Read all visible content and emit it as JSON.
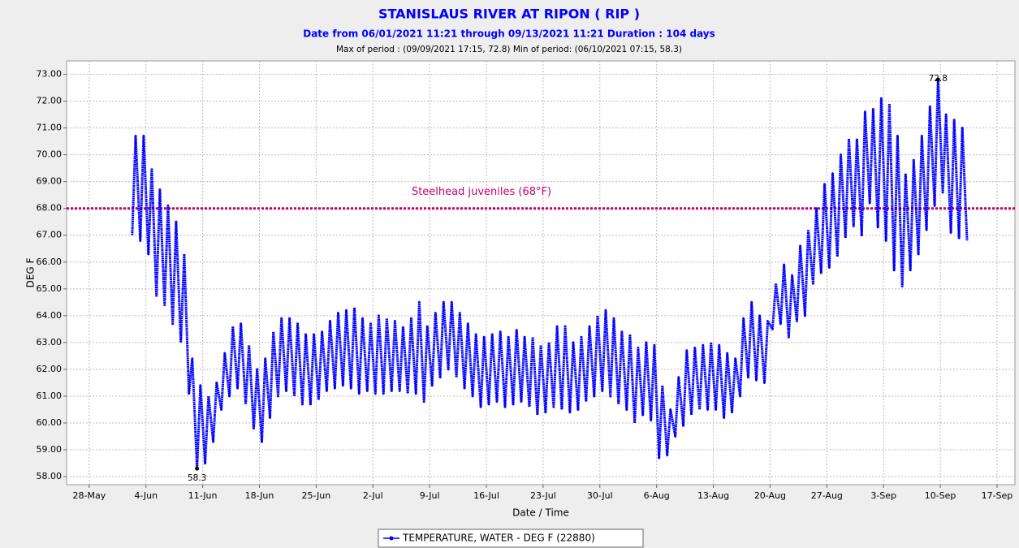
{
  "chart_data": {
    "type": "line",
    "title": "STANISLAUS RIVER AT RIPON ( RIP )",
    "subtitle": "Date from 06/01/2021 11:21 through 09/13/2021 11:21 Duration : 104 days",
    "note": "Max of period : (09/09/2021 17:15, 72.8)  Min of period: (06/10/2021 07:15,  58.3)",
    "ylabel": "DEG F",
    "xlabel": "Date / Time",
    "xlim": [
      "2021-05-25T05:00",
      "2021-09-19T05:00"
    ],
    "xticks": [
      {
        "value": "2021-05-28T00:00",
        "label": "28-May"
      },
      {
        "value": "2021-06-04T00:00",
        "label": "4-Jun"
      },
      {
        "value": "2021-06-11T00:00",
        "label": "11-Jun"
      },
      {
        "value": "2021-06-18T00:00",
        "label": "18-Jun"
      },
      {
        "value": "2021-06-25T00:00",
        "label": "25-Jun"
      },
      {
        "value": "2021-07-02T00:00",
        "label": "2-Jul"
      },
      {
        "value": "2021-07-09T00:00",
        "label": "9-Jul"
      },
      {
        "value": "2021-07-16T00:00",
        "label": "16-Jul"
      },
      {
        "value": "2021-07-23T00:00",
        "label": "23-Jul"
      },
      {
        "value": "2021-07-30T00:00",
        "label": "30-Jul"
      },
      {
        "value": "2021-08-06T00:00",
        "label": "6-Aug"
      },
      {
        "value": "2021-08-13T00:00",
        "label": "13-Aug"
      },
      {
        "value": "2021-08-20T00:00",
        "label": "20-Aug"
      },
      {
        "value": "2021-08-27T00:00",
        "label": "27-Aug"
      },
      {
        "value": "2021-09-03T00:00",
        "label": "3-Sep"
      },
      {
        "value": "2021-09-10T00:00",
        "label": "10-Sep"
      },
      {
        "value": "2021-09-17T00:00",
        "label": "17-Sep"
      }
    ],
    "ylim": [
      57.7,
      73.5
    ],
    "yticks": [
      {
        "value": 58,
        "label": "58.00"
      },
      {
        "value": 59,
        "label": "59.00"
      },
      {
        "value": 60,
        "label": "60.00"
      },
      {
        "value": 61,
        "label": "61.00"
      },
      {
        "value": 62,
        "label": "62.00"
      },
      {
        "value": 63,
        "label": "63.00"
      },
      {
        "value": 64,
        "label": "64.00"
      },
      {
        "value": 65,
        "label": "65.00"
      },
      {
        "value": 66,
        "label": "66.00"
      },
      {
        "value": 67,
        "label": "67.00"
      },
      {
        "value": 68,
        "label": "68.00"
      },
      {
        "value": 69,
        "label": "69.00"
      },
      {
        "value": 70,
        "label": "70.00"
      },
      {
        "value": 71,
        "label": "71.00"
      },
      {
        "value": 72,
        "label": "72.00"
      },
      {
        "value": 73,
        "label": "73.00"
      }
    ],
    "grid": true,
    "reference_line": {
      "value": 68,
      "label": "Steelhead juveniles (68°F)",
      "color": "#cc0066"
    },
    "annotations": [
      {
        "x": "2021-09-09T17:15",
        "y": 72.8,
        "label": "72.8"
      },
      {
        "x": "2021-06-10T07:15",
        "y": 58.3,
        "label": "58.3"
      }
    ],
    "x": [
      "2021-06-02T07:15",
      "2021-06-02T17:15",
      "2021-06-03T07:15",
      "2021-06-03T17:15",
      "2021-06-04T07:15",
      "2021-06-04T17:15",
      "2021-06-05T07:15",
      "2021-06-05T17:15",
      "2021-06-06T07:15",
      "2021-06-06T17:15",
      "2021-06-07T07:15",
      "2021-06-07T17:15",
      "2021-06-08T07:15",
      "2021-06-08T17:15",
      "2021-06-09T07:15",
      "2021-06-09T17:15",
      "2021-06-10T07:15",
      "2021-06-10T17:15",
      "2021-06-11T07:15",
      "2021-06-11T17:15",
      "2021-06-12T07:15",
      "2021-06-12T17:15",
      "2021-06-13T07:15",
      "2021-06-13T17:15",
      "2021-06-14T07:15",
      "2021-06-14T17:15",
      "2021-06-15T07:15",
      "2021-06-15T17:15",
      "2021-06-16T07:15",
      "2021-06-16T17:15",
      "2021-06-17T07:15",
      "2021-06-17T17:15",
      "2021-06-18T07:15",
      "2021-06-18T17:15",
      "2021-06-19T07:15",
      "2021-06-19T17:15",
      "2021-06-20T07:15",
      "2021-06-20T17:15",
      "2021-06-21T07:15",
      "2021-06-21T17:15",
      "2021-06-22T07:15",
      "2021-06-22T17:15",
      "2021-06-23T07:15",
      "2021-06-23T17:15",
      "2021-06-24T07:15",
      "2021-06-24T17:15",
      "2021-06-25T07:15",
      "2021-06-25T17:15",
      "2021-06-26T07:15",
      "2021-06-26T17:15",
      "2021-06-27T07:15",
      "2021-06-27T17:15",
      "2021-06-28T07:15",
      "2021-06-28T17:15",
      "2021-06-29T07:15",
      "2021-06-29T17:15",
      "2021-06-30T07:15",
      "2021-06-30T17:15",
      "2021-07-01T07:15",
      "2021-07-01T17:15",
      "2021-07-02T07:15",
      "2021-07-02T17:15",
      "2021-07-03T07:15",
      "2021-07-03T17:15",
      "2021-07-04T07:15",
      "2021-07-04T17:15",
      "2021-07-05T07:15",
      "2021-07-05T17:15",
      "2021-07-06T07:15",
      "2021-07-06T17:15",
      "2021-07-07T07:15",
      "2021-07-07T17:15",
      "2021-07-08T07:15",
      "2021-07-08T17:15",
      "2021-07-09T07:15",
      "2021-07-09T17:15",
      "2021-07-10T07:15",
      "2021-07-10T17:15",
      "2021-07-11T07:15",
      "2021-07-11T17:15",
      "2021-07-12T07:15",
      "2021-07-12T17:15",
      "2021-07-13T07:15",
      "2021-07-13T17:15",
      "2021-07-14T07:15",
      "2021-07-14T17:15",
      "2021-07-15T07:15",
      "2021-07-15T17:15",
      "2021-07-16T07:15",
      "2021-07-16T17:15",
      "2021-07-17T07:15",
      "2021-07-17T17:15",
      "2021-07-18T07:15",
      "2021-07-18T17:15",
      "2021-07-19T07:15",
      "2021-07-19T17:15",
      "2021-07-20T07:15",
      "2021-07-20T17:15",
      "2021-07-21T07:15",
      "2021-07-21T17:15",
      "2021-07-22T07:15",
      "2021-07-22T17:15",
      "2021-07-23T07:15",
      "2021-07-23T17:15",
      "2021-07-24T07:15",
      "2021-07-24T17:15",
      "2021-07-25T07:15",
      "2021-07-25T17:15",
      "2021-07-26T07:15",
      "2021-07-26T17:15",
      "2021-07-27T07:15",
      "2021-07-27T17:15",
      "2021-07-28T07:15",
      "2021-07-28T17:15",
      "2021-07-29T07:15",
      "2021-07-29T17:15",
      "2021-07-30T07:15",
      "2021-07-30T17:15",
      "2021-07-31T07:15",
      "2021-07-31T17:15",
      "2021-08-01T07:15",
      "2021-08-01T17:15",
      "2021-08-02T07:15",
      "2021-08-02T17:15",
      "2021-08-03T07:15",
      "2021-08-03T17:15",
      "2021-08-04T07:15",
      "2021-08-04T17:15",
      "2021-08-05T07:15",
      "2021-08-05T17:15",
      "2021-08-06T07:15",
      "2021-08-06T17:15",
      "2021-08-07T07:15",
      "2021-08-07T17:15",
      "2021-08-08T07:15",
      "2021-08-08T17:15",
      "2021-08-09T07:15",
      "2021-08-09T17:15",
      "2021-08-10T07:15",
      "2021-08-10T17:15",
      "2021-08-11T07:15",
      "2021-08-11T17:15",
      "2021-08-12T07:15",
      "2021-08-12T17:15",
      "2021-08-13T07:15",
      "2021-08-13T17:15",
      "2021-08-14T07:15",
      "2021-08-14T17:15",
      "2021-08-15T07:15",
      "2021-08-15T17:15",
      "2021-08-16T07:15",
      "2021-08-16T17:15",
      "2021-08-17T07:15",
      "2021-08-17T17:15",
      "2021-08-18T07:15",
      "2021-08-18T17:15",
      "2021-08-19T07:15",
      "2021-08-19T17:15",
      "2021-08-20T07:15",
      "2021-08-20T17:15",
      "2021-08-21T07:15",
      "2021-08-21T17:15",
      "2021-08-22T07:15",
      "2021-08-22T17:15",
      "2021-08-23T07:15",
      "2021-08-23T17:15",
      "2021-08-24T07:15",
      "2021-08-24T17:15",
      "2021-08-25T07:15",
      "2021-08-25T17:15",
      "2021-08-26T07:15",
      "2021-08-26T17:15",
      "2021-08-27T07:15",
      "2021-08-27T17:15",
      "2021-08-28T07:15",
      "2021-08-28T17:15",
      "2021-08-29T07:15",
      "2021-08-29T17:15",
      "2021-08-30T07:15",
      "2021-08-30T17:15",
      "2021-08-31T07:15",
      "2021-08-31T17:15",
      "2021-09-01T07:15",
      "2021-09-01T17:15",
      "2021-09-02T07:15",
      "2021-09-02T17:15",
      "2021-09-03T07:15",
      "2021-09-03T17:15",
      "2021-09-04T07:15",
      "2021-09-04T17:15",
      "2021-09-05T07:15",
      "2021-09-05T17:15",
      "2021-09-06T07:15",
      "2021-09-06T17:15",
      "2021-09-07T07:15",
      "2021-09-07T17:15",
      "2021-09-08T07:15",
      "2021-09-08T17:15",
      "2021-09-09T07:15",
      "2021-09-09T17:15",
      "2021-09-10T07:15",
      "2021-09-10T17:15",
      "2021-09-11T07:15",
      "2021-09-11T17:15",
      "2021-09-12T07:15",
      "2021-09-12T17:15",
      "2021-09-13T07:15"
    ],
    "series": [
      {
        "name": "TEMPERATURE, WATER - DEG F (22880)",
        "color": "#0000ff",
        "values": [
          67.0,
          70.7,
          66.8,
          70.7,
          66.3,
          69.5,
          64.7,
          68.7,
          64.4,
          68.1,
          63.7,
          67.5,
          63.0,
          66.3,
          61.1,
          62.4,
          58.3,
          61.4,
          58.5,
          61.0,
          59.3,
          61.5,
          60.5,
          62.6,
          61.0,
          63.6,
          61.3,
          63.7,
          60.7,
          62.9,
          59.8,
          62.0,
          59.3,
          62.4,
          60.2,
          63.4,
          61.0,
          63.9,
          61.2,
          63.9,
          61.0,
          63.7,
          60.7,
          63.3,
          60.7,
          63.3,
          60.9,
          63.4,
          61.2,
          63.8,
          61.3,
          64.1,
          61.4,
          64.2,
          61.3,
          64.3,
          61.1,
          63.9,
          61.2,
          63.7,
          61.1,
          64.0,
          61.1,
          63.9,
          61.2,
          63.8,
          61.2,
          63.6,
          61.1,
          63.9,
          61.1,
          64.5,
          60.8,
          63.6,
          61.4,
          64.1,
          61.7,
          64.5,
          62.0,
          64.5,
          61.7,
          64.1,
          61.3,
          63.7,
          61.0,
          63.3,
          60.6,
          63.2,
          60.7,
          63.3,
          60.8,
          63.4,
          60.6,
          63.2,
          60.7,
          63.5,
          60.8,
          63.2,
          60.6,
          63.2,
          60.3,
          62.9,
          60.4,
          63.0,
          60.6,
          63.6,
          60.5,
          63.6,
          60.4,
          63.0,
          60.5,
          63.2,
          60.8,
          63.6,
          61.0,
          64.0,
          61.2,
          64.2,
          61.0,
          63.9,
          60.7,
          63.4,
          60.5,
          63.3,
          60.0,
          62.8,
          60.3,
          63.0,
          60.1,
          62.9,
          58.7,
          61.4,
          58.8,
          60.5,
          59.5,
          61.7,
          59.9,
          62.7,
          60.3,
          62.8,
          60.5,
          62.9,
          60.5,
          63.0,
          60.5,
          62.9,
          60.2,
          62.6,
          60.4,
          62.4,
          61.0,
          63.9,
          61.7,
          64.5,
          61.6,
          64.0,
          61.5,
          63.8,
          63.5,
          65.2,
          63.7,
          65.9,
          63.2,
          65.5,
          63.8,
          66.6,
          64.0,
          67.2,
          65.2,
          68.0,
          65.6,
          68.9,
          65.8,
          69.3,
          66.2,
          70.0,
          66.9,
          70.6,
          67.3,
          70.6,
          67.0,
          71.6,
          68.2,
          71.7,
          67.3,
          72.1,
          66.8,
          71.9,
          65.7,
          70.7,
          65.1,
          69.3,
          65.7,
          69.8,
          66.3,
          70.7,
          67.2,
          71.8,
          68.1,
          72.8,
          68.6,
          71.5,
          67.1,
          71.3,
          66.9,
          71.0,
          66.8
        ]
      }
    ]
  }
}
